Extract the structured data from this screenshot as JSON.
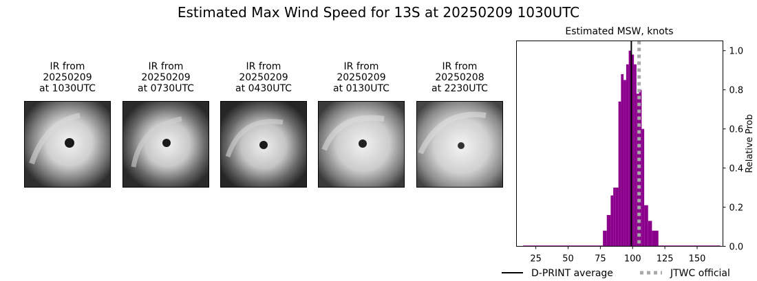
{
  "title": "Estimated Max Wind Speed for 13S at 20250209 1030UTC",
  "panels": [
    {
      "label": "IR from\n20250209\nat 1030UTC"
    },
    {
      "label": "IR from\n20250209\nat 0730UTC"
    },
    {
      "label": "IR from\n20250209\nat 0430UTC"
    },
    {
      "label": "IR from\n20250209\nat 0130UTC"
    },
    {
      "label": "IR from\n20250208\nat 2230UTC"
    }
  ],
  "chart_data": {
    "type": "bar",
    "title": "Estimated MSW, knots",
    "xlabel": "",
    "ylabel": "Relative Prob",
    "xlim": [
      10,
      170
    ],
    "ylim": [
      0,
      1.05
    ],
    "xticks": [
      25,
      50,
      75,
      100,
      125,
      150
    ],
    "yticks": [
      0.0,
      0.2,
      0.4,
      0.6,
      0.8,
      1.0
    ],
    "bar_color": "#8b008b",
    "bins": [
      {
        "x0": 15,
        "x1": 77,
        "y": 0.004
      },
      {
        "x0": 77,
        "x1": 80,
        "y": 0.08
      },
      {
        "x0": 80,
        "x1": 83,
        "y": 0.16
      },
      {
        "x0": 83,
        "x1": 85,
        "y": 0.26
      },
      {
        "x0": 85,
        "x1": 87,
        "y": 0.3
      },
      {
        "x0": 87,
        "x1": 89,
        "y": 0.3
      },
      {
        "x0": 89,
        "x1": 91,
        "y": 0.74
      },
      {
        "x0": 91,
        "x1": 93,
        "y": 0.88
      },
      {
        "x0": 93,
        "x1": 95,
        "y": 0.85
      },
      {
        "x0": 95,
        "x1": 97,
        "y": 0.93
      },
      {
        "x0": 97,
        "x1": 99,
        "y": 1.0
      },
      {
        "x0": 99,
        "x1": 101,
        "y": 0.98
      },
      {
        "x0": 101,
        "x1": 103,
        "y": 0.93
      },
      {
        "x0": 103,
        "x1": 105,
        "y": 0.78
      },
      {
        "x0": 105,
        "x1": 107,
        "y": 0.8
      },
      {
        "x0": 107,
        "x1": 109,
        "y": 0.6
      },
      {
        "x0": 109,
        "x1": 112,
        "y": 0.21
      },
      {
        "x0": 112,
        "x1": 115,
        "y": 0.13
      },
      {
        "x0": 115,
        "x1": 120,
        "y": 0.08
      },
      {
        "x0": 120,
        "x1": 168,
        "y": 0.004
      }
    ],
    "lines": [
      {
        "name": "D-PRINT average",
        "x": 99,
        "color": "#000000",
        "style": "solid"
      },
      {
        "name": "JTWC official",
        "x": 105,
        "color": "#a9a9a9",
        "style": "dotted"
      }
    ],
    "legend": "bottom"
  }
}
